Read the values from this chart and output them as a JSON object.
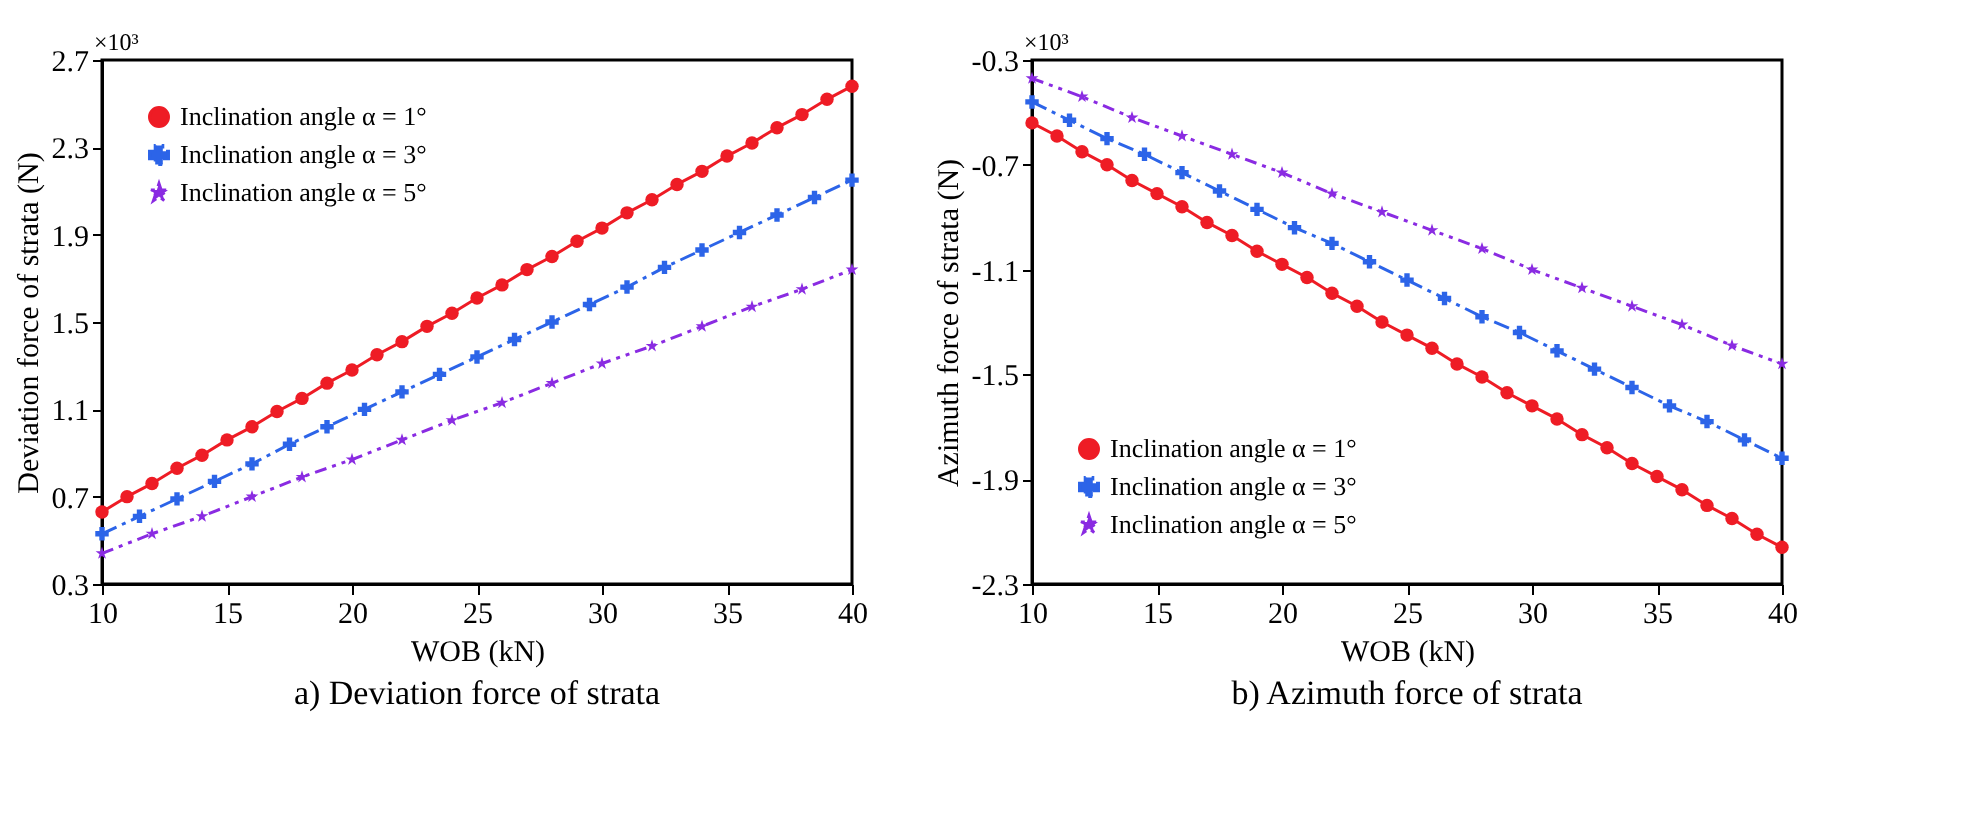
{
  "chart_data": [
    {
      "type": "line",
      "title": "a) Deviation force of strata",
      "xlabel": "WOB (kN)",
      "ylabel": "Deviation force of strata (N)",
      "annotations": [
        "×10³"
      ],
      "xlim": [
        10,
        40
      ],
      "xticks": [
        10,
        15,
        20,
        25,
        30,
        35,
        40
      ],
      "ylim": [
        0.3,
        2.7
      ],
      "yticks": [
        0.3,
        0.7,
        1.1,
        1.5,
        1.9,
        2.3,
        2.7
      ],
      "legend": "top left",
      "grid": false,
      "series": [
        {
          "name": "Inclination angle α = 1°",
          "color": "#ee1c25",
          "marker": "circle",
          "line_style": "solid",
          "x": [
            10,
            11,
            12,
            13,
            14,
            15,
            16,
            17,
            18,
            19,
            20,
            21,
            22,
            23,
            24,
            25,
            26,
            27,
            28,
            29,
            30,
            31,
            32,
            33,
            34,
            35,
            36,
            37,
            38,
            39,
            40
          ],
          "values": [
            0.63,
            0.7,
            0.76,
            0.83,
            0.89,
            0.96,
            1.02,
            1.09,
            1.15,
            1.22,
            1.28,
            1.35,
            1.41,
            1.48,
            1.54,
            1.61,
            1.67,
            1.74,
            1.8,
            1.87,
            1.93,
            2.0,
            2.06,
            2.13,
            2.19,
            2.26,
            2.32,
            2.39,
            2.45,
            2.52,
            2.58
          ]
        },
        {
          "name": "Inclination angle α = 3°",
          "color": "#2c64e8",
          "marker": "cross",
          "line_style": "dashed",
          "x": [
            10,
            11.5,
            13,
            14.5,
            16,
            17.5,
            19,
            20.5,
            22,
            23.5,
            25,
            26.5,
            28,
            29.5,
            31,
            32.5,
            34,
            35.5,
            37,
            38.5,
            40
          ],
          "values": [
            0.53,
            0.61,
            0.69,
            0.77,
            0.85,
            0.94,
            1.02,
            1.1,
            1.18,
            1.26,
            1.34,
            1.42,
            1.5,
            1.58,
            1.66,
            1.75,
            1.83,
            1.91,
            1.99,
            2.07,
            2.15
          ]
        },
        {
          "name": "Inclination angle α = 5°",
          "color": "#8a2be2",
          "marker": "star",
          "line_style": "dotted",
          "x": [
            10,
            12,
            14,
            16,
            18,
            20,
            22,
            24,
            26,
            28,
            30,
            32,
            34,
            36,
            38,
            40
          ],
          "values": [
            0.44,
            0.53,
            0.61,
            0.7,
            0.79,
            0.87,
            0.96,
            1.05,
            1.13,
            1.22,
            1.31,
            1.39,
            1.48,
            1.57,
            1.65,
            1.74
          ]
        }
      ]
    },
    {
      "type": "line",
      "title": "b) Azimuth force of strata",
      "xlabel": "WOB (kN)",
      "ylabel": "Azimuth force of strata (N)",
      "annotations": [
        "×10³"
      ],
      "xlim": [
        10,
        40
      ],
      "xticks": [
        10,
        15,
        20,
        25,
        30,
        35,
        40
      ],
      "ylim": [
        -2.3,
        -0.3
      ],
      "yticks": [
        -2.3,
        -1.9,
        -1.5,
        -1.1,
        -0.7,
        -0.3
      ],
      "legend": "bottom left",
      "grid": false,
      "series": [
        {
          "name": "Inclination angle α = 1°",
          "color": "#ee1c25",
          "marker": "circle",
          "line_style": "solid",
          "x": [
            10,
            11,
            12,
            13,
            14,
            15,
            16,
            17,
            18,
            19,
            20,
            21,
            22,
            23,
            24,
            25,
            26,
            27,
            28,
            29,
            30,
            31,
            32,
            33,
            34,
            35,
            36,
            37,
            38,
            39,
            40
          ],
          "values": [
            -0.54,
            -0.59,
            -0.65,
            -0.7,
            -0.76,
            -0.81,
            -0.86,
            -0.92,
            -0.97,
            -1.03,
            -1.08,
            -1.13,
            -1.19,
            -1.24,
            -1.3,
            -1.35,
            -1.4,
            -1.46,
            -1.51,
            -1.57,
            -1.62,
            -1.67,
            -1.73,
            -1.78,
            -1.84,
            -1.89,
            -1.94,
            -2.0,
            -2.05,
            -2.11,
            -2.16
          ]
        },
        {
          "name": "Inclination angle α = 3°",
          "color": "#2c64e8",
          "marker": "cross",
          "line_style": "dashed",
          "x": [
            10,
            11.5,
            13,
            14.5,
            16,
            17.5,
            19,
            20.5,
            22,
            23.5,
            25,
            26.5,
            28,
            29.5,
            31,
            32.5,
            34,
            35.5,
            37,
            38.5,
            40
          ],
          "values": [
            -0.46,
            -0.53,
            -0.6,
            -0.66,
            -0.73,
            -0.8,
            -0.87,
            -0.94,
            -1.0,
            -1.07,
            -1.14,
            -1.21,
            -1.28,
            -1.34,
            -1.41,
            -1.48,
            -1.55,
            -1.62,
            -1.68,
            -1.75,
            -1.82
          ]
        },
        {
          "name": "Inclination angle α = 5°",
          "color": "#8a2be2",
          "marker": "star",
          "line_style": "dotted",
          "x": [
            10,
            12,
            14,
            16,
            18,
            20,
            22,
            24,
            26,
            28,
            30,
            32,
            34,
            36,
            38,
            40
          ],
          "values": [
            -0.37,
            -0.44,
            -0.52,
            -0.59,
            -0.66,
            -0.73,
            -0.81,
            -0.88,
            -0.95,
            -1.02,
            -1.1,
            -1.17,
            -1.24,
            -1.31,
            -1.39,
            -1.46
          ]
        }
      ]
    }
  ]
}
